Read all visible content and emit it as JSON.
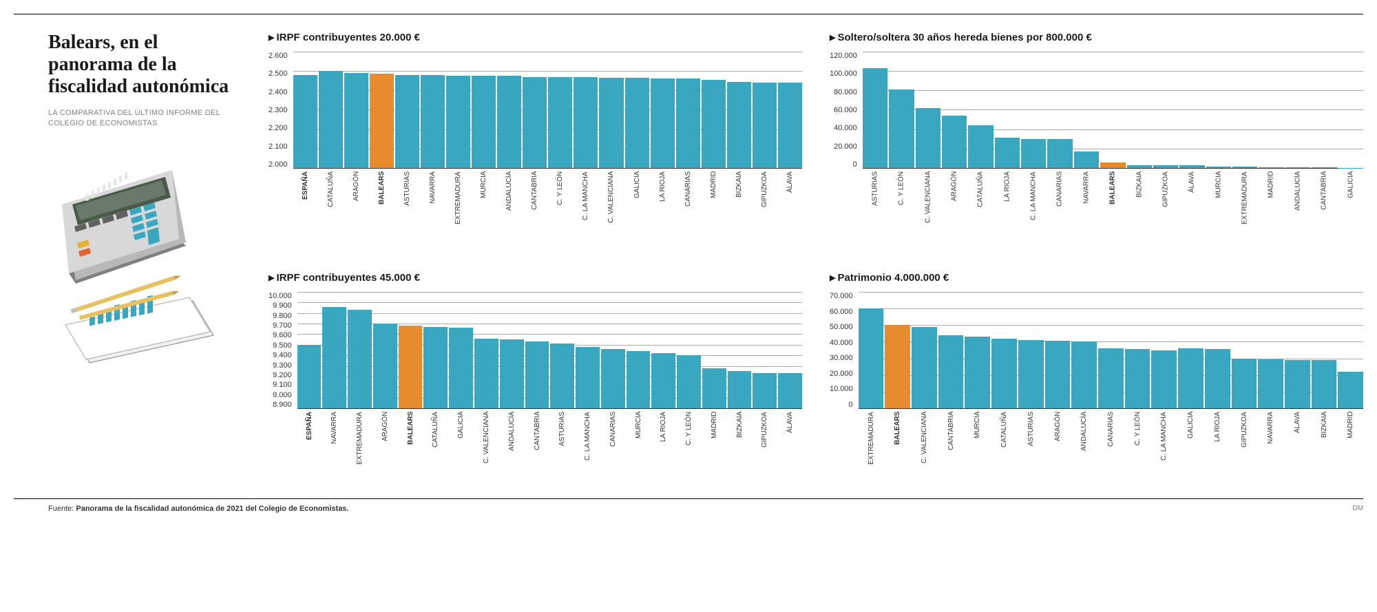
{
  "headline": "Balears, en el panorama de la fiscalidad autonómica",
  "subhead": "LA COMPARATIVA DEL ÚLTIMO INFORME DEL COLEGIO DE ECONOMISTAS",
  "source_label": "Fuente: ",
  "source_text": "Panorama de la fiscalidad autonómica de 2021 del Colegio de Economistas.",
  "credit": "DM",
  "colors": {
    "bar_default": "#3aa7c1",
    "bar_highlight": "#e88b2e",
    "axis": "#333333",
    "grid": "#aaaaaa",
    "background": "#ffffff",
    "text": "#1a1a1a",
    "subtext": "#808080"
  },
  "chart1": {
    "title": "IRPF contribuyentes 20.000 €",
    "type": "bar",
    "ymin": 2000,
    "ymax": 2600,
    "yticks": [
      "2.600",
      "2.500",
      "2.400",
      "2.300",
      "2.200",
      "2.100",
      "2.000"
    ],
    "bars": [
      {
        "label": "ESPAÑA",
        "value": 2480,
        "bold": true,
        "highlight": false
      },
      {
        "label": "CATALUÑA",
        "value": 2500,
        "bold": false,
        "highlight": false
      },
      {
        "label": "ARAGÓN",
        "value": 2490,
        "bold": false,
        "highlight": false
      },
      {
        "label": "BALEARS",
        "value": 2485,
        "bold": true,
        "highlight": true
      },
      {
        "label": "ASTURIAS",
        "value": 2480,
        "bold": false,
        "highlight": false
      },
      {
        "label": "NAVARRA",
        "value": 2480,
        "bold": false,
        "highlight": false
      },
      {
        "label": "EXTREMADURA",
        "value": 2475,
        "bold": false,
        "highlight": false
      },
      {
        "label": "MURCIA",
        "value": 2475,
        "bold": false,
        "highlight": false
      },
      {
        "label": "ANDALUCÍA",
        "value": 2475,
        "bold": false,
        "highlight": false
      },
      {
        "label": "CANTABRIA",
        "value": 2470,
        "bold": false,
        "highlight": false
      },
      {
        "label": "C. Y LEÓN",
        "value": 2470,
        "bold": false,
        "highlight": false
      },
      {
        "label": "C. LA MANCHA",
        "value": 2470,
        "bold": false,
        "highlight": false
      },
      {
        "label": "C. VALENCIANA",
        "value": 2465,
        "bold": false,
        "highlight": false
      },
      {
        "label": "GALICIA",
        "value": 2465,
        "bold": false,
        "highlight": false
      },
      {
        "label": "LA RIOJA",
        "value": 2460,
        "bold": false,
        "highlight": false
      },
      {
        "label": "CANARIAS",
        "value": 2460,
        "bold": false,
        "highlight": false
      },
      {
        "label": "MADRID",
        "value": 2455,
        "bold": false,
        "highlight": false
      },
      {
        "label": "BIZKAIA",
        "value": 2445,
        "bold": false,
        "highlight": false
      },
      {
        "label": "GIPUZKOA",
        "value": 2440,
        "bold": false,
        "highlight": false
      },
      {
        "label": "ÁLAVA",
        "value": 2440,
        "bold": false,
        "highlight": false
      }
    ]
  },
  "chart2": {
    "title": "IRPF contribuyentes 45.000 €",
    "type": "bar",
    "ymin": 8900,
    "ymax": 10000,
    "yticks": [
      "10.000",
      "9.900",
      "9.800",
      "9.700",
      "9.600",
      "9.500",
      "9.400",
      "9.300",
      "9.200",
      "9.100",
      "9.000",
      "8.900"
    ],
    "bars": [
      {
        "label": "ESPAÑA",
        "value": 9500,
        "bold": true,
        "highlight": false
      },
      {
        "label": "NAVARRA",
        "value": 9860,
        "bold": false,
        "highlight": false
      },
      {
        "label": "EXTREMADURA",
        "value": 9830,
        "bold": false,
        "highlight": false
      },
      {
        "label": "ARAGÓN",
        "value": 9700,
        "bold": false,
        "highlight": false
      },
      {
        "label": "BALEARS",
        "value": 9680,
        "bold": true,
        "highlight": true
      },
      {
        "label": "CATALUÑA",
        "value": 9670,
        "bold": false,
        "highlight": false
      },
      {
        "label": "GALICIA",
        "value": 9660,
        "bold": false,
        "highlight": false
      },
      {
        "label": "C. VALENCIANA",
        "value": 9560,
        "bold": false,
        "highlight": false
      },
      {
        "label": "ANDALUCÍA",
        "value": 9550,
        "bold": false,
        "highlight": false
      },
      {
        "label": "CANTABRIA",
        "value": 9530,
        "bold": false,
        "highlight": false
      },
      {
        "label": "ASTURIAS",
        "value": 9510,
        "bold": false,
        "highlight": false
      },
      {
        "label": "C. LA MANCHA",
        "value": 9480,
        "bold": false,
        "highlight": false
      },
      {
        "label": "CANARIAS",
        "value": 9460,
        "bold": false,
        "highlight": false
      },
      {
        "label": "MURCIA",
        "value": 9440,
        "bold": false,
        "highlight": false
      },
      {
        "label": "LA RIOJA",
        "value": 9420,
        "bold": false,
        "highlight": false
      },
      {
        "label": "C. Y LEÓN",
        "value": 9400,
        "bold": false,
        "highlight": false
      },
      {
        "label": "MADRID",
        "value": 9280,
        "bold": false,
        "highlight": false
      },
      {
        "label": "BIZKAIA",
        "value": 9250,
        "bold": false,
        "highlight": false
      },
      {
        "label": "GIPUZKOA",
        "value": 9230,
        "bold": false,
        "highlight": false
      },
      {
        "label": "ÁLAVA",
        "value": 9230,
        "bold": false,
        "highlight": false
      }
    ]
  },
  "chart3": {
    "title": "Soltero/soltera 30 años hereda bienes por 800.000 €",
    "type": "bar",
    "ymin": 0,
    "ymax": 120000,
    "yticks": [
      "120.000",
      "100.000",
      "80.000",
      "60.000",
      "40.000",
      "20.000",
      "0"
    ],
    "bars": [
      {
        "label": "ASTURIAS",
        "value": 103000,
        "bold": false,
        "highlight": false
      },
      {
        "label": "C. Y LEÓN",
        "value": 81000,
        "bold": false,
        "highlight": false
      },
      {
        "label": "C. VALENCIANA",
        "value": 62000,
        "bold": false,
        "highlight": false
      },
      {
        "label": "ARAGÓN",
        "value": 54000,
        "bold": false,
        "highlight": false
      },
      {
        "label": "CATALUÑA",
        "value": 44000,
        "bold": false,
        "highlight": false
      },
      {
        "label": "LA RIOJA",
        "value": 31000,
        "bold": false,
        "highlight": false
      },
      {
        "label": "C. LA MANCHA",
        "value": 30000,
        "bold": false,
        "highlight": false
      },
      {
        "label": "CANARIAS",
        "value": 30000,
        "bold": false,
        "highlight": false
      },
      {
        "label": "NAVARRA",
        "value": 17000,
        "bold": false,
        "highlight": false
      },
      {
        "label": "BALEARS",
        "value": 6000,
        "bold": true,
        "highlight": true
      },
      {
        "label": "BIZKAIA",
        "value": 3000,
        "bold": false,
        "highlight": false
      },
      {
        "label": "GIPUZKOA",
        "value": 3000,
        "bold": false,
        "highlight": false
      },
      {
        "label": "ÁLAVA",
        "value": 3000,
        "bold": false,
        "highlight": false
      },
      {
        "label": "MURCIA",
        "value": 1500,
        "bold": false,
        "highlight": false
      },
      {
        "label": "EXTREMADURA",
        "value": 1200,
        "bold": false,
        "highlight": false
      },
      {
        "label": "MADRID",
        "value": 1000,
        "bold": false,
        "highlight": false
      },
      {
        "label": "ANDALUCÍA",
        "value": 800,
        "bold": false,
        "highlight": false
      },
      {
        "label": "CANTABRIA",
        "value": 500,
        "bold": false,
        "highlight": false
      },
      {
        "label": "GALICIA",
        "value": 300,
        "bold": false,
        "highlight": false
      }
    ]
  },
  "chart4": {
    "title": "Patrimonio 4.000.000 €",
    "type": "bar",
    "ymin": 0,
    "ymax": 70000,
    "yticks": [
      "70.000",
      "60.000",
      "50.000",
      "40.000",
      "30.000",
      "20.000",
      "10.000",
      "0"
    ],
    "bars": [
      {
        "label": "EXTREMADURA",
        "value": 60000,
        "bold": false,
        "highlight": false
      },
      {
        "label": "BALEARS",
        "value": 50000,
        "bold": true,
        "highlight": true
      },
      {
        "label": "C. VALENCIANA",
        "value": 49000,
        "bold": false,
        "highlight": false
      },
      {
        "label": "CANTABRIA",
        "value": 44000,
        "bold": false,
        "highlight": false
      },
      {
        "label": "MURCIA",
        "value": 43000,
        "bold": false,
        "highlight": false
      },
      {
        "label": "CATALUÑA",
        "value": 42000,
        "bold": false,
        "highlight": false
      },
      {
        "label": "ASTURIAS",
        "value": 41000,
        "bold": false,
        "highlight": false
      },
      {
        "label": "ARAGÓN",
        "value": 40500,
        "bold": false,
        "highlight": false
      },
      {
        "label": "ANDALUCÍA",
        "value": 40000,
        "bold": false,
        "highlight": false
      },
      {
        "label": "CANARIAS",
        "value": 36000,
        "bold": false,
        "highlight": false
      },
      {
        "label": "C. Y LEÓN",
        "value": 35500,
        "bold": false,
        "highlight": false
      },
      {
        "label": "C. LA MANCHA",
        "value": 35000,
        "bold": false,
        "highlight": false
      },
      {
        "label": "GALICIA",
        "value": 36000,
        "bold": false,
        "highlight": false
      },
      {
        "label": "LA RIOJA",
        "value": 35500,
        "bold": false,
        "highlight": false
      },
      {
        "label": "GIPUZKOA",
        "value": 30000,
        "bold": false,
        "highlight": false
      },
      {
        "label": "NAVARRA",
        "value": 29500,
        "bold": false,
        "highlight": false
      },
      {
        "label": "ÁLAVA",
        "value": 29000,
        "bold": false,
        "highlight": false
      },
      {
        "label": "BIZKAIA",
        "value": 29000,
        "bold": false,
        "highlight": false
      },
      {
        "label": "MADRID",
        "value": 22000,
        "bold": false,
        "highlight": false
      }
    ]
  }
}
